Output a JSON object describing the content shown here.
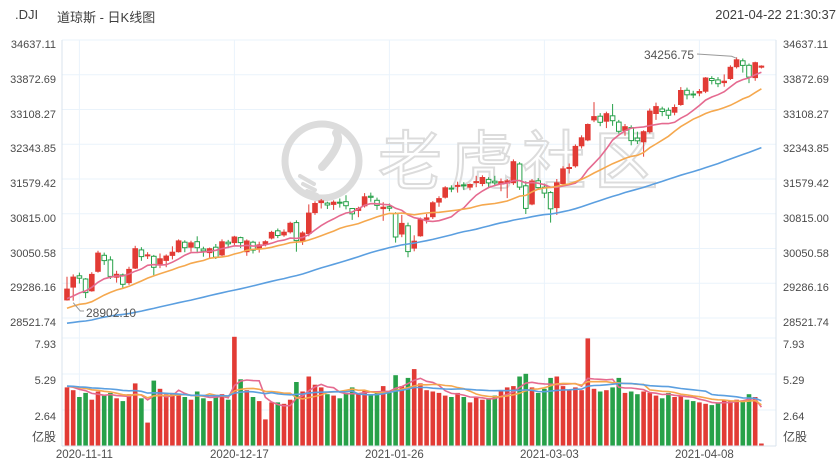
{
  "header": {
    "symbol": ".DJI",
    "title": "道琼斯 - 日K线图",
    "timestamp": "2021-04-22 21:30:37"
  },
  "watermark": {
    "text": "老虎社区"
  },
  "colors": {
    "up": "#e23b35",
    "down": "#27a149",
    "ma_fast": "#e56a90",
    "ma_mid": "#f5a84e",
    "ma_slow": "#5b9fe0",
    "grid": "#eaf3fb",
    "border": "#d9e3ec",
    "axis_text": "#4a4a4a",
    "watermark": "#dcdcdc"
  },
  "price_axis": {
    "labels": [
      "34637.11",
      "33872.69",
      "33108.27",
      "32343.85",
      "31579.42",
      "30815.00",
      "30050.58",
      "29286.16",
      "28521.74"
    ],
    "max": 34637.11,
    "min": 28521.74
  },
  "volume_axis": {
    "labels": [
      "7.93",
      "5.29",
      "2.64"
    ],
    "values": [
      7.93,
      5.29,
      2.64
    ],
    "unit": "亿股"
  },
  "x_axis": {
    "tick_dates": [
      "2020-11-11",
      "2020-12-17",
      "2021-01-26",
      "2021-03-03",
      "2021-04-08"
    ],
    "tick_indices": [
      2,
      27,
      52,
      77,
      102
    ]
  },
  "annotations": {
    "low": {
      "label": "28902.10",
      "value": 28902.1,
      "index": 1
    },
    "high": {
      "label": "34256.75",
      "value": 34256.75,
      "index": 108
    }
  },
  "chart_data": {
    "type": "candlestick",
    "title": ".DJI 道琼斯 日K线图",
    "ylabel": "price",
    "ylim": [
      28521.74,
      34637.11
    ],
    "volume_unit": "亿股",
    "volume_ylim": [
      0,
      8.2
    ],
    "grid": true,
    "ma_windows": {
      "fast": 10,
      "mid": 20,
      "slow": 60
    },
    "vol_ma_windows": {
      "fast": 5,
      "mid": 10,
      "slow": 20
    },
    "ma_seed_closes": [
      28100,
      28250,
      28400,
      28300,
      28150,
      28000,
      27900,
      28050,
      28200,
      28350,
      28500,
      28400,
      28250,
      28100,
      27950,
      27850,
      28000,
      28150,
      28300,
      28450,
      28350,
      28200,
      28050,
      27950,
      28100,
      28250,
      28400,
      28550,
      28450,
      28300,
      28150,
      28050,
      28200,
      28350,
      28500,
      28650,
      28550,
      28400,
      28250,
      28150,
      28300,
      28450,
      28600,
      28750,
      28650,
      28500,
      28350,
      28250,
      28400,
      28550,
      28700,
      28850,
      28750,
      28600,
      28700,
      28850,
      29000,
      29100,
      29200,
      29280
    ],
    "vol_ma_seed": 4.4,
    "dates": [
      "2020-11-09",
      "2020-11-10",
      "2020-11-11",
      "2020-11-12",
      "2020-11-13",
      "2020-11-16",
      "2020-11-17",
      "2020-11-18",
      "2020-11-19",
      "2020-11-20",
      "2020-11-23",
      "2020-11-24",
      "2020-11-25",
      "2020-11-27",
      "2020-11-30",
      "2020-12-01",
      "2020-12-02",
      "2020-12-03",
      "2020-12-04",
      "2020-12-07",
      "2020-12-08",
      "2020-12-09",
      "2020-12-10",
      "2020-12-11",
      "2020-12-14",
      "2020-12-15",
      "2020-12-16",
      "2020-12-17",
      "2020-12-18",
      "2020-12-21",
      "2020-12-22",
      "2020-12-23",
      "2020-12-24",
      "2020-12-28",
      "2020-12-29",
      "2020-12-30",
      "2020-12-31",
      "2021-01-04",
      "2021-01-05",
      "2021-01-06",
      "2021-01-07",
      "2021-01-08",
      "2021-01-11",
      "2021-01-12",
      "2021-01-13",
      "2021-01-14",
      "2021-01-15",
      "2021-01-19",
      "2021-01-20",
      "2021-01-21",
      "2021-01-22",
      "2021-01-25",
      "2021-01-26",
      "2021-01-27",
      "2021-01-28",
      "2021-01-29",
      "2021-02-01",
      "2021-02-02",
      "2021-02-03",
      "2021-02-04",
      "2021-02-05",
      "2021-02-08",
      "2021-02-09",
      "2021-02-10",
      "2021-02-11",
      "2021-02-12",
      "2021-02-16",
      "2021-02-17",
      "2021-02-18",
      "2021-02-19",
      "2021-02-22",
      "2021-02-23",
      "2021-02-24",
      "2021-02-25",
      "2021-02-26",
      "2021-03-01",
      "2021-03-02",
      "2021-03-03",
      "2021-03-04",
      "2021-03-05",
      "2021-03-08",
      "2021-03-09",
      "2021-03-10",
      "2021-03-11",
      "2021-03-12",
      "2021-03-15",
      "2021-03-16",
      "2021-03-17",
      "2021-03-18",
      "2021-03-19",
      "2021-03-22",
      "2021-03-23",
      "2021-03-24",
      "2021-03-25",
      "2021-03-26",
      "2021-03-29",
      "2021-03-30",
      "2021-03-31",
      "2021-04-01",
      "2021-04-05",
      "2021-04-06",
      "2021-04-07",
      "2021-04-08",
      "2021-04-09",
      "2021-04-12",
      "2021-04-13",
      "2021-04-14",
      "2021-04-15",
      "2021-04-16",
      "2021-04-19",
      "2021-04-20",
      "2021-04-21",
      "2021-04-22"
    ],
    "ohlc": [
      [
        28920,
        29430,
        28905,
        29158
      ],
      [
        29200,
        29480,
        28902.1,
        29421
      ],
      [
        29450,
        29520,
        29280,
        29397
      ],
      [
        29380,
        29400,
        28960,
        29080
      ],
      [
        29120,
        29530,
        29100,
        29480
      ],
      [
        29550,
        30000,
        29520,
        29950
      ],
      [
        29900,
        29960,
        29690,
        29783
      ],
      [
        29800,
        29880,
        29380,
        29438
      ],
      [
        29420,
        29560,
        29300,
        29483
      ],
      [
        29470,
        29500,
        29180,
        29263
      ],
      [
        29300,
        29650,
        29250,
        29591
      ],
      [
        29620,
        30110,
        29600,
        30046
      ],
      [
        30020,
        30080,
        29780,
        29872
      ],
      [
        29890,
        29970,
        29820,
        29910
      ],
      [
        29880,
        29910,
        29460,
        29639
      ],
      [
        29710,
        29940,
        29620,
        29824
      ],
      [
        29790,
        29920,
        29640,
        29884
      ],
      [
        29900,
        30100,
        29810,
        29970
      ],
      [
        29980,
        30250,
        29960,
        30218
      ],
      [
        30190,
        30230,
        29970,
        30069
      ],
      [
        30080,
        30220,
        29980,
        30174
      ],
      [
        30200,
        30320,
        29950,
        30069
      ],
      [
        30040,
        30090,
        29870,
        29999
      ],
      [
        29960,
        30070,
        29820,
        30046
      ],
      [
        30080,
        30150,
        29820,
        29861
      ],
      [
        29910,
        30250,
        29880,
        30199
      ],
      [
        30190,
        30240,
        30060,
        30155
      ],
      [
        30180,
        30330,
        30120,
        30303
      ],
      [
        30290,
        30310,
        30060,
        30179
      ],
      [
        29980,
        30250,
        29890,
        30216
      ],
      [
        30190,
        30220,
        29940,
        30015
      ],
      [
        30040,
        30200,
        29960,
        30130
      ],
      [
        30150,
        30230,
        30100,
        30200
      ],
      [
        30280,
        30440,
        30250,
        30404
      ],
      [
        30440,
        30490,
        30280,
        30336
      ],
      [
        30350,
        30470,
        30310,
        30410
      ],
      [
        30420,
        30640,
        30380,
        30606
      ],
      [
        30620,
        30670,
        29980,
        30224
      ],
      [
        30210,
        30430,
        30130,
        30392
      ],
      [
        30380,
        31020,
        30320,
        30829
      ],
      [
        30840,
        31090,
        30790,
        31041
      ],
      [
        31060,
        31140,
        30930,
        31098
      ],
      [
        31050,
        31080,
        30920,
        31009
      ],
      [
        31020,
        31110,
        30900,
        31069
      ],
      [
        31070,
        31150,
        30950,
        31061
      ],
      [
        31080,
        31220,
        30910,
        30992
      ],
      [
        30930,
        30940,
        30680,
        30814
      ],
      [
        30890,
        30970,
        30740,
        30931
      ],
      [
        30990,
        31270,
        30950,
        31188
      ],
      [
        31200,
        31280,
        31080,
        31176
      ],
      [
        31110,
        31170,
        30900,
        30997
      ],
      [
        30930,
        31070,
        30660,
        30960
      ],
      [
        30970,
        31040,
        30870,
        30937
      ],
      [
        30820,
        30850,
        30180,
        30303
      ],
      [
        30370,
        30790,
        30300,
        30603
      ],
      [
        30550,
        30620,
        29857,
        29983
      ],
      [
        30060,
        30340,
        29990,
        30212
      ],
      [
        30330,
        30730,
        30310,
        30687
      ],
      [
        30690,
        30810,
        30600,
        30724
      ],
      [
        30750,
        31090,
        30700,
        31056
      ],
      [
        31070,
        31200,
        30970,
        31148
      ],
      [
        31180,
        31420,
        31150,
        31386
      ],
      [
        31380,
        31440,
        31290,
        31375
      ],
      [
        31420,
        31520,
        31280,
        31438
      ],
      [
        31450,
        31510,
        31340,
        31430
      ],
      [
        31400,
        31480,
        31330,
        31458
      ],
      [
        31520,
        31650,
        31400,
        31523
      ],
      [
        31480,
        31660,
        31420,
        31613
      ],
      [
        31570,
        31620,
        31370,
        31493
      ],
      [
        31530,
        31650,
        31420,
        31494
      ],
      [
        31470,
        31590,
        31310,
        31521
      ],
      [
        31490,
        31580,
        31160,
        31537
      ],
      [
        31500,
        32010,
        31450,
        31961
      ],
      [
        31910,
        31950,
        31340,
        31402
      ],
      [
        31430,
        31530,
        30810,
        30932
      ],
      [
        31030,
        31580,
        31000,
        31535
      ],
      [
        31540,
        31600,
        31340,
        31391
      ],
      [
        31400,
        31480,
        31160,
        31270
      ],
      [
        31280,
        31310,
        30620,
        30924
      ],
      [
        30950,
        31580,
        30790,
        31496
      ],
      [
        31480,
        31860,
        31430,
        31802
      ],
      [
        31820,
        31920,
        31700,
        31832
      ],
      [
        31870,
        32340,
        31830,
        32297
      ],
      [
        32310,
        32540,
        32250,
        32486
      ],
      [
        32440,
        32800,
        32410,
        32779
      ],
      [
        32880,
        33270,
        32830,
        32953
      ],
      [
        32960,
        33030,
        32740,
        32825
      ],
      [
        32850,
        33060,
        32700,
        33015
      ],
      [
        32970,
        33230,
        32750,
        32862
      ],
      [
        32830,
        32880,
        32580,
        32628
      ],
      [
        32650,
        32790,
        32530,
        32731
      ],
      [
        32710,
        32760,
        32320,
        32423
      ],
      [
        32480,
        32620,
        32350,
        32420
      ],
      [
        32400,
        32650,
        32070,
        32619
      ],
      [
        32620,
        33130,
        32580,
        33073
      ],
      [
        33020,
        33260,
        32880,
        33171
      ],
      [
        33120,
        33170,
        32960,
        33066
      ],
      [
        33090,
        33150,
        32900,
        32982
      ],
      [
        33050,
        33220,
        32980,
        33153
      ],
      [
        33220,
        33600,
        33190,
        33527
      ],
      [
        33530,
        33590,
        33330,
        33430
      ],
      [
        33450,
        33520,
        33360,
        33446
      ],
      [
        33470,
        33560,
        33400,
        33504
      ],
      [
        33510,
        33820,
        33470,
        33801
      ],
      [
        33790,
        33840,
        33660,
        33745
      ],
      [
        33760,
        33820,
        33600,
        33677
      ],
      [
        33700,
        33880,
        33610,
        33731
      ],
      [
        33790,
        34080,
        33760,
        34036
      ],
      [
        34050,
        34256.75,
        34010,
        34201
      ],
      [
        34180,
        34230,
        33920,
        34078
      ],
      [
        34080,
        34120,
        33690,
        33821
      ],
      [
        33810,
        34160,
        33740,
        34137
      ],
      [
        34040,
        34080,
        34010,
        34064
      ]
    ],
    "volumes": [
      4.3,
      4.1,
      3.6,
      3.9,
      3.4,
      4.0,
      3.7,
      3.9,
      3.5,
      3.3,
      3.8,
      4.6,
      3.5,
      1.72,
      4.8,
      4.2,
      3.8,
      3.9,
      3.8,
      3.6,
      3.4,
      4.0,
      3.5,
      3.3,
      3.7,
      3.8,
      3.4,
      8.02,
      4.9,
      4.1,
      3.6,
      3.3,
      1.95,
      3.2,
      3.2,
      3.1,
      3.4,
      4.7,
      4.0,
      5.1,
      4.5,
      4.3,
      3.8,
      3.7,
      3.5,
      3.9,
      4.3,
      3.8,
      4.1,
      3.8,
      3.9,
      4.4,
      3.9,
      5.2,
      4.4,
      5.0,
      5.65,
      4.6,
      4.1,
      4.0,
      3.9,
      3.7,
      3.6,
      3.9,
      3.6,
      3.2,
      3.6,
      3.4,
      3.5,
      3.7,
      4.0,
      4.3,
      4.4,
      5.1,
      5.3,
      4.3,
      3.9,
      4.2,
      5.0,
      5.1,
      4.4,
      4.1,
      4.3,
      4.1,
      7.9,
      4.2,
      4.0,
      4.1,
      4.3,
      5.0,
      3.9,
      4.0,
      3.8,
      4.0,
      3.9,
      3.7,
      3.5,
      3.9,
      3.6,
      3.7,
      3.4,
      3.3,
      3.2,
      3.1,
      3.0,
      3.2,
      3.4,
      3.3,
      3.4,
      3.3,
      3.8,
      3.6,
      0.18
    ]
  }
}
